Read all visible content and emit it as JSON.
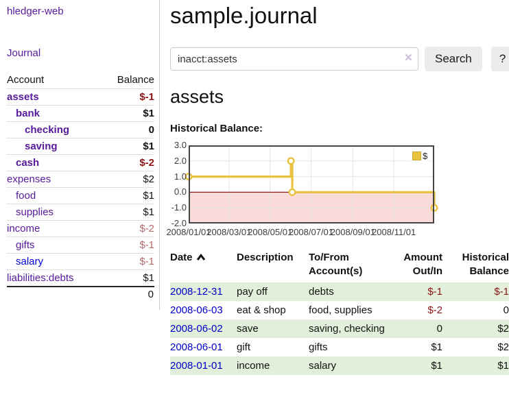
{
  "header": {
    "title": "sample.journal"
  },
  "search": {
    "value": "inacct:assets",
    "clear_icon": "×",
    "button": "Search",
    "help_button": "?"
  },
  "sidebar": {
    "brand": "hledger-web",
    "nav": {
      "journal": "Journal"
    },
    "accounts_header": {
      "account": "Account",
      "balance": "Balance"
    },
    "accounts": [
      {
        "name": "assets",
        "depth": 0,
        "bold": true,
        "balance": "$-1"
      },
      {
        "name": "bank",
        "depth": 1,
        "bold": true,
        "balance": "$1"
      },
      {
        "name": "checking",
        "depth": 2,
        "bold": true,
        "balance": "0"
      },
      {
        "name": "saving",
        "depth": 2,
        "bold": true,
        "balance": "$1"
      },
      {
        "name": "cash",
        "depth": 1,
        "bold": true,
        "balance": "$-2"
      },
      {
        "name": "expenses",
        "depth": 0,
        "bold": false,
        "balance": "$2"
      },
      {
        "name": "food",
        "depth": 1,
        "bold": false,
        "balance": "$1"
      },
      {
        "name": "supplies",
        "depth": 1,
        "bold": false,
        "balance": "$1"
      },
      {
        "name": "income",
        "depth": 0,
        "bold": false,
        "balance": "$-2"
      },
      {
        "name": "gifts",
        "depth": 1,
        "bold": false,
        "balance": "$-1"
      },
      {
        "name": "salary",
        "depth": 1,
        "bold": false,
        "balance": "$-1",
        "unvisited": true
      },
      {
        "name": "liabilities:debts",
        "depth": 0,
        "bold": false,
        "balance": "$1"
      }
    ],
    "total": "0"
  },
  "account_page": {
    "heading": "assets",
    "chart_label": "Historical Balance:"
  },
  "chart_data": {
    "type": "line",
    "step": true,
    "title": "Historical Balance:",
    "x_range": [
      "2008/01/01",
      "2008/12/31"
    ],
    "x_ticks": [
      "2008/01/01",
      "2008/03/01",
      "2008/05/01",
      "2008/07/01",
      "2008/09/01",
      "2008/11/01"
    ],
    "y_ticks": [
      3,
      2,
      1,
      0,
      -1,
      -2
    ],
    "ylim": [
      -2,
      3
    ],
    "grid": true,
    "legend_position": "top-right",
    "series": [
      {
        "name": "$",
        "color": "#e9c340",
        "points": [
          [
            "2008/01/01",
            1
          ],
          [
            "2008/06/01",
            2
          ],
          [
            "2008/06/03",
            0
          ],
          [
            "2008/12/31",
            -1
          ]
        ]
      }
    ],
    "negative_fill": "#fbdada",
    "zero_line_color": "#8b1919"
  },
  "register": {
    "headers": {
      "date": "Date",
      "description": "Description",
      "accounts": "To/From Account(s)",
      "amount": "Amount Out/In",
      "balance": "Historical Balance"
    },
    "rows": [
      {
        "date": "2008-12-31",
        "description": "pay off",
        "accounts": "debts",
        "amount": "$-1",
        "balance": "$-1"
      },
      {
        "date": "2008-06-03",
        "description": "eat & shop",
        "accounts": "food, supplies",
        "amount": "$-2",
        "balance": "0"
      },
      {
        "date": "2008-06-02",
        "description": "save",
        "accounts": "saving, checking",
        "amount": "0",
        "balance": "$2"
      },
      {
        "date": "2008-06-01",
        "description": "gift",
        "accounts": "gifts",
        "amount": "$1",
        "balance": "$2"
      },
      {
        "date": "2008-01-01",
        "description": "income",
        "accounts": "salary",
        "amount": "$1",
        "balance": "$1"
      }
    ]
  },
  "colors": {
    "link_visited": "#551a9b",
    "link_unvisited": "#0000dd",
    "negative_dark": "#8b1414",
    "negative_light": "#b06a6a",
    "row_green": "#e2efda",
    "chart_line": "#e9c340"
  }
}
